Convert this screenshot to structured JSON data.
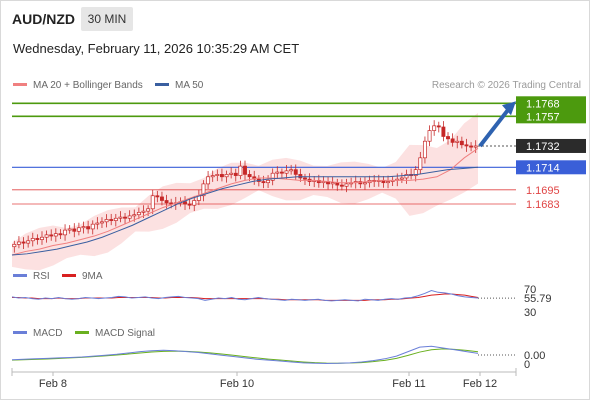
{
  "header": {
    "symbol": "AUD/NZD",
    "timeframe": "30 MIN",
    "datetime": "Wednesday, February 11, 2026 10:35:29 AM CET"
  },
  "legend": {
    "ma20_label": "MA 20 + Bollinger Bands",
    "ma50_label": "MA 50",
    "credit": "Research © 2026 Trading Central",
    "rsi_label": "RSI",
    "rsi_ma_label": "9MA",
    "macd_label": "MACD",
    "macd_signal_label": "MACD Signal"
  },
  "colors": {
    "candle": "#c62828",
    "ma20": "#f08080",
    "band_fill": "#fbdada",
    "ma50": "#3a5fa0",
    "resistance": "#4c9a0e",
    "support": "#3a5fd8",
    "target": "#e04545",
    "arrow": "#2e62b0",
    "rsi": "#6a7fd8",
    "rsi_ma": "#d82020",
    "macd": "#6a7fd8",
    "macd_signal": "#6ab020"
  },
  "levels": [
    {
      "value": 1.1768,
      "label": "1.1768",
      "kind": "resistance"
    },
    {
      "value": 1.1757,
      "label": "1.1757",
      "kind": "resistance"
    },
    {
      "value": 1.1732,
      "label": "1.1732",
      "kind": "current"
    },
    {
      "value": 1.1714,
      "label": "1.1714",
      "kind": "pivot"
    },
    {
      "value": 1.1695,
      "label": "1.1695",
      "kind": "target"
    },
    {
      "value": 1.1683,
      "label": "1.1683",
      "kind": "target"
    }
  ],
  "rsi_panel": {
    "current": "55.79",
    "ticks": [
      "70",
      "30"
    ]
  },
  "macd_panel": {
    "current": "0.00",
    "ticks": [
      "0"
    ]
  },
  "chart_data": {
    "type": "candlestick",
    "xlabels": [
      "Feb 8",
      "Feb 10",
      "Feb 11",
      "Feb 12"
    ],
    "ylim": [
      1.164,
      1.1775
    ],
    "grid": false,
    "close": [
      1.1649,
      1.1651,
      1.165,
      1.1652,
      1.1654,
      1.1653,
      1.1655,
      1.1657,
      1.1656,
      1.1658,
      1.1657,
      1.1661,
      1.1662,
      1.166,
      1.1663,
      1.1664,
      1.1662,
      1.1666,
      1.1667,
      1.1668,
      1.167,
      1.1669,
      1.1671,
      1.1672,
      1.1671,
      1.1673,
      1.1674,
      1.1676,
      1.1677,
      1.1679,
      1.169,
      1.1689,
      1.1686,
      1.1684,
      1.1683,
      1.1684,
      1.1685,
      1.1683,
      1.1682,
      1.1686,
      1.169,
      1.17,
      1.1706,
      1.1707,
      1.1708,
      1.1706,
      1.1708,
      1.1709,
      1.1707,
      1.1715,
      1.1708,
      1.1706,
      1.1704,
      1.1702,
      1.1701,
      1.1703,
      1.1709,
      1.171,
      1.1709,
      1.1711,
      1.1712,
      1.1708,
      1.1705,
      1.1704,
      1.1702,
      1.1703,
      1.1701,
      1.1702,
      1.17,
      1.1701,
      1.1699,
      1.1698,
      1.17,
      1.1701,
      1.1702,
      1.17,
      1.1701,
      1.1703,
      1.1702,
      1.1703,
      1.1701,
      1.1702,
      1.1703,
      1.1704,
      1.1705,
      1.1708,
      1.1707,
      1.1712,
      1.1722,
      1.1736,
      1.1745,
      1.1749,
      1.1748,
      1.174,
      1.1738,
      1.1735,
      1.1736,
      1.1733,
      1.1732,
      1.1731,
      1.1732
    ],
    "ma20": [
      1.164,
      1.1643,
      1.1645,
      1.1648,
      1.165,
      1.1653,
      1.1656,
      1.166,
      1.1665,
      1.167,
      1.1675,
      1.168,
      1.1684,
      1.1688,
      1.1692,
      1.1696,
      1.17,
      1.1703,
      1.1705,
      1.1705,
      1.1704,
      1.1703,
      1.1703,
      1.1702,
      1.1701,
      1.1701,
      1.1702,
      1.1703,
      1.1703,
      1.1703,
      1.1704,
      1.1706,
      1.1712,
      1.1722,
      1.173
    ],
    "ma50": [
      1.164,
      1.1641,
      1.1643,
      1.1645,
      1.1648,
      1.1651,
      1.1655,
      1.166,
      1.1665,
      1.1671,
      1.1677,
      1.1683,
      1.1688,
      1.1692,
      1.1696,
      1.1699,
      1.1702,
      1.1704,
      1.1705,
      1.1706,
      1.1706,
      1.1706,
      1.1706,
      1.1706,
      1.1706,
      1.1706,
      1.1707,
      1.1708,
      1.171,
      1.1712,
      1.1713,
      1.1714
    ],
    "rsi": [
      58,
      56,
      57,
      55,
      54,
      56,
      55,
      57,
      55,
      54,
      55,
      57,
      56,
      55,
      56,
      57,
      59,
      58,
      56,
      57,
      58,
      56,
      55,
      57,
      58,
      59,
      57,
      56,
      55,
      52,
      54,
      56,
      55,
      57,
      54,
      53,
      55,
      57,
      55,
      54,
      53,
      52,
      54,
      53,
      52,
      53,
      54,
      52,
      51,
      52,
      53,
      52,
      51,
      54,
      53,
      52,
      54,
      55,
      54,
      56,
      57,
      60,
      64,
      69,
      66,
      65,
      63,
      60,
      58,
      57,
      56
    ],
    "rsi_ma": [
      57,
      57,
      56,
      56,
      55,
      55,
      55,
      56,
      55,
      55,
      55,
      56,
      56,
      56,
      56,
      56,
      57,
      57,
      57,
      57,
      57,
      57,
      56,
      56,
      57,
      57,
      57,
      57,
      56,
      55,
      55,
      55,
      55,
      55,
      55,
      55,
      55,
      55,
      55,
      54,
      54,
      53,
      53,
      53,
      53,
      53,
      53,
      52,
      52,
      52,
      52,
      52,
      52,
      52,
      53,
      53,
      53,
      54,
      54,
      55,
      56,
      57,
      59,
      61,
      62,
      63,
      63,
      62,
      61,
      59,
      57
    ],
    "macd": [
      -0.3,
      -0.25,
      -0.2,
      -0.15,
      -0.1,
      -0.05,
      0.0,
      0.1,
      0.2,
      0.3,
      0.45,
      0.6,
      0.7,
      0.75,
      0.7,
      0.6,
      0.5,
      0.35,
      0.2,
      0.05,
      -0.1,
      -0.25,
      -0.35,
      -0.45,
      -0.55,
      -0.65,
      -0.7,
      -0.72,
      -0.7,
      -0.65,
      -0.55,
      -0.4,
      -0.2,
      0.1,
      0.6,
      1.1,
      1.2,
      1.0,
      0.8,
      0.6,
      0.4
    ],
    "macd_signal": [
      -0.35,
      -0.3,
      -0.26,
      -0.22,
      -0.16,
      -0.1,
      -0.04,
      0.04,
      0.13,
      0.22,
      0.33,
      0.45,
      0.55,
      0.62,
      0.65,
      0.62,
      0.56,
      0.46,
      0.33,
      0.19,
      0.04,
      -0.1,
      -0.23,
      -0.34,
      -0.45,
      -0.55,
      -0.63,
      -0.68,
      -0.69,
      -0.67,
      -0.62,
      -0.52,
      -0.37,
      -0.15,
      0.18,
      0.55,
      0.8,
      0.9,
      0.85,
      0.73,
      0.58
    ]
  }
}
